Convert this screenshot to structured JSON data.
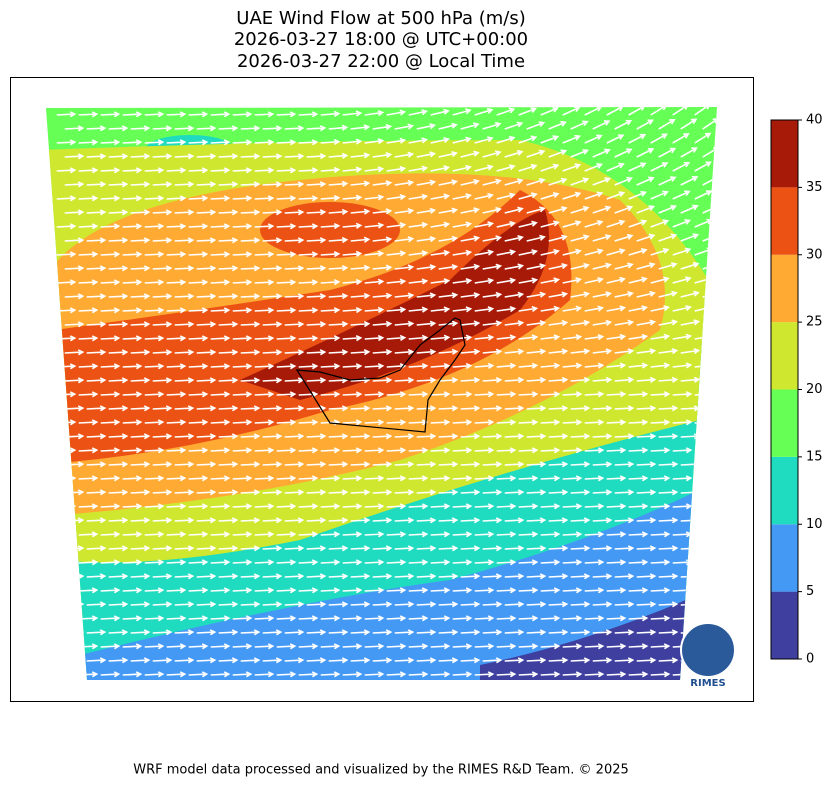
{
  "title": [
    "UAE Wind Flow at 500 hPa (m/s)",
    "2026-03-27 18:00 @ UTC+00:00",
    "2026-03-27 22:00 @ Local Time"
  ],
  "colorbar": {
    "lim": [
      0,
      40
    ],
    "ticks": [
      0,
      5,
      10,
      15,
      20,
      25,
      30,
      35,
      40
    ],
    "colors": [
      "#3f3f9f",
      "#4499f5",
      "#1fdbbf",
      "#66ff55",
      "#cfe82f",
      "#ffaa33",
      "#ec5214",
      "#a81a08"
    ]
  },
  "logo": "RIMES",
  "footer": "WRF model data processed and visualized by the RIMES R&D Team. © 2025"
}
